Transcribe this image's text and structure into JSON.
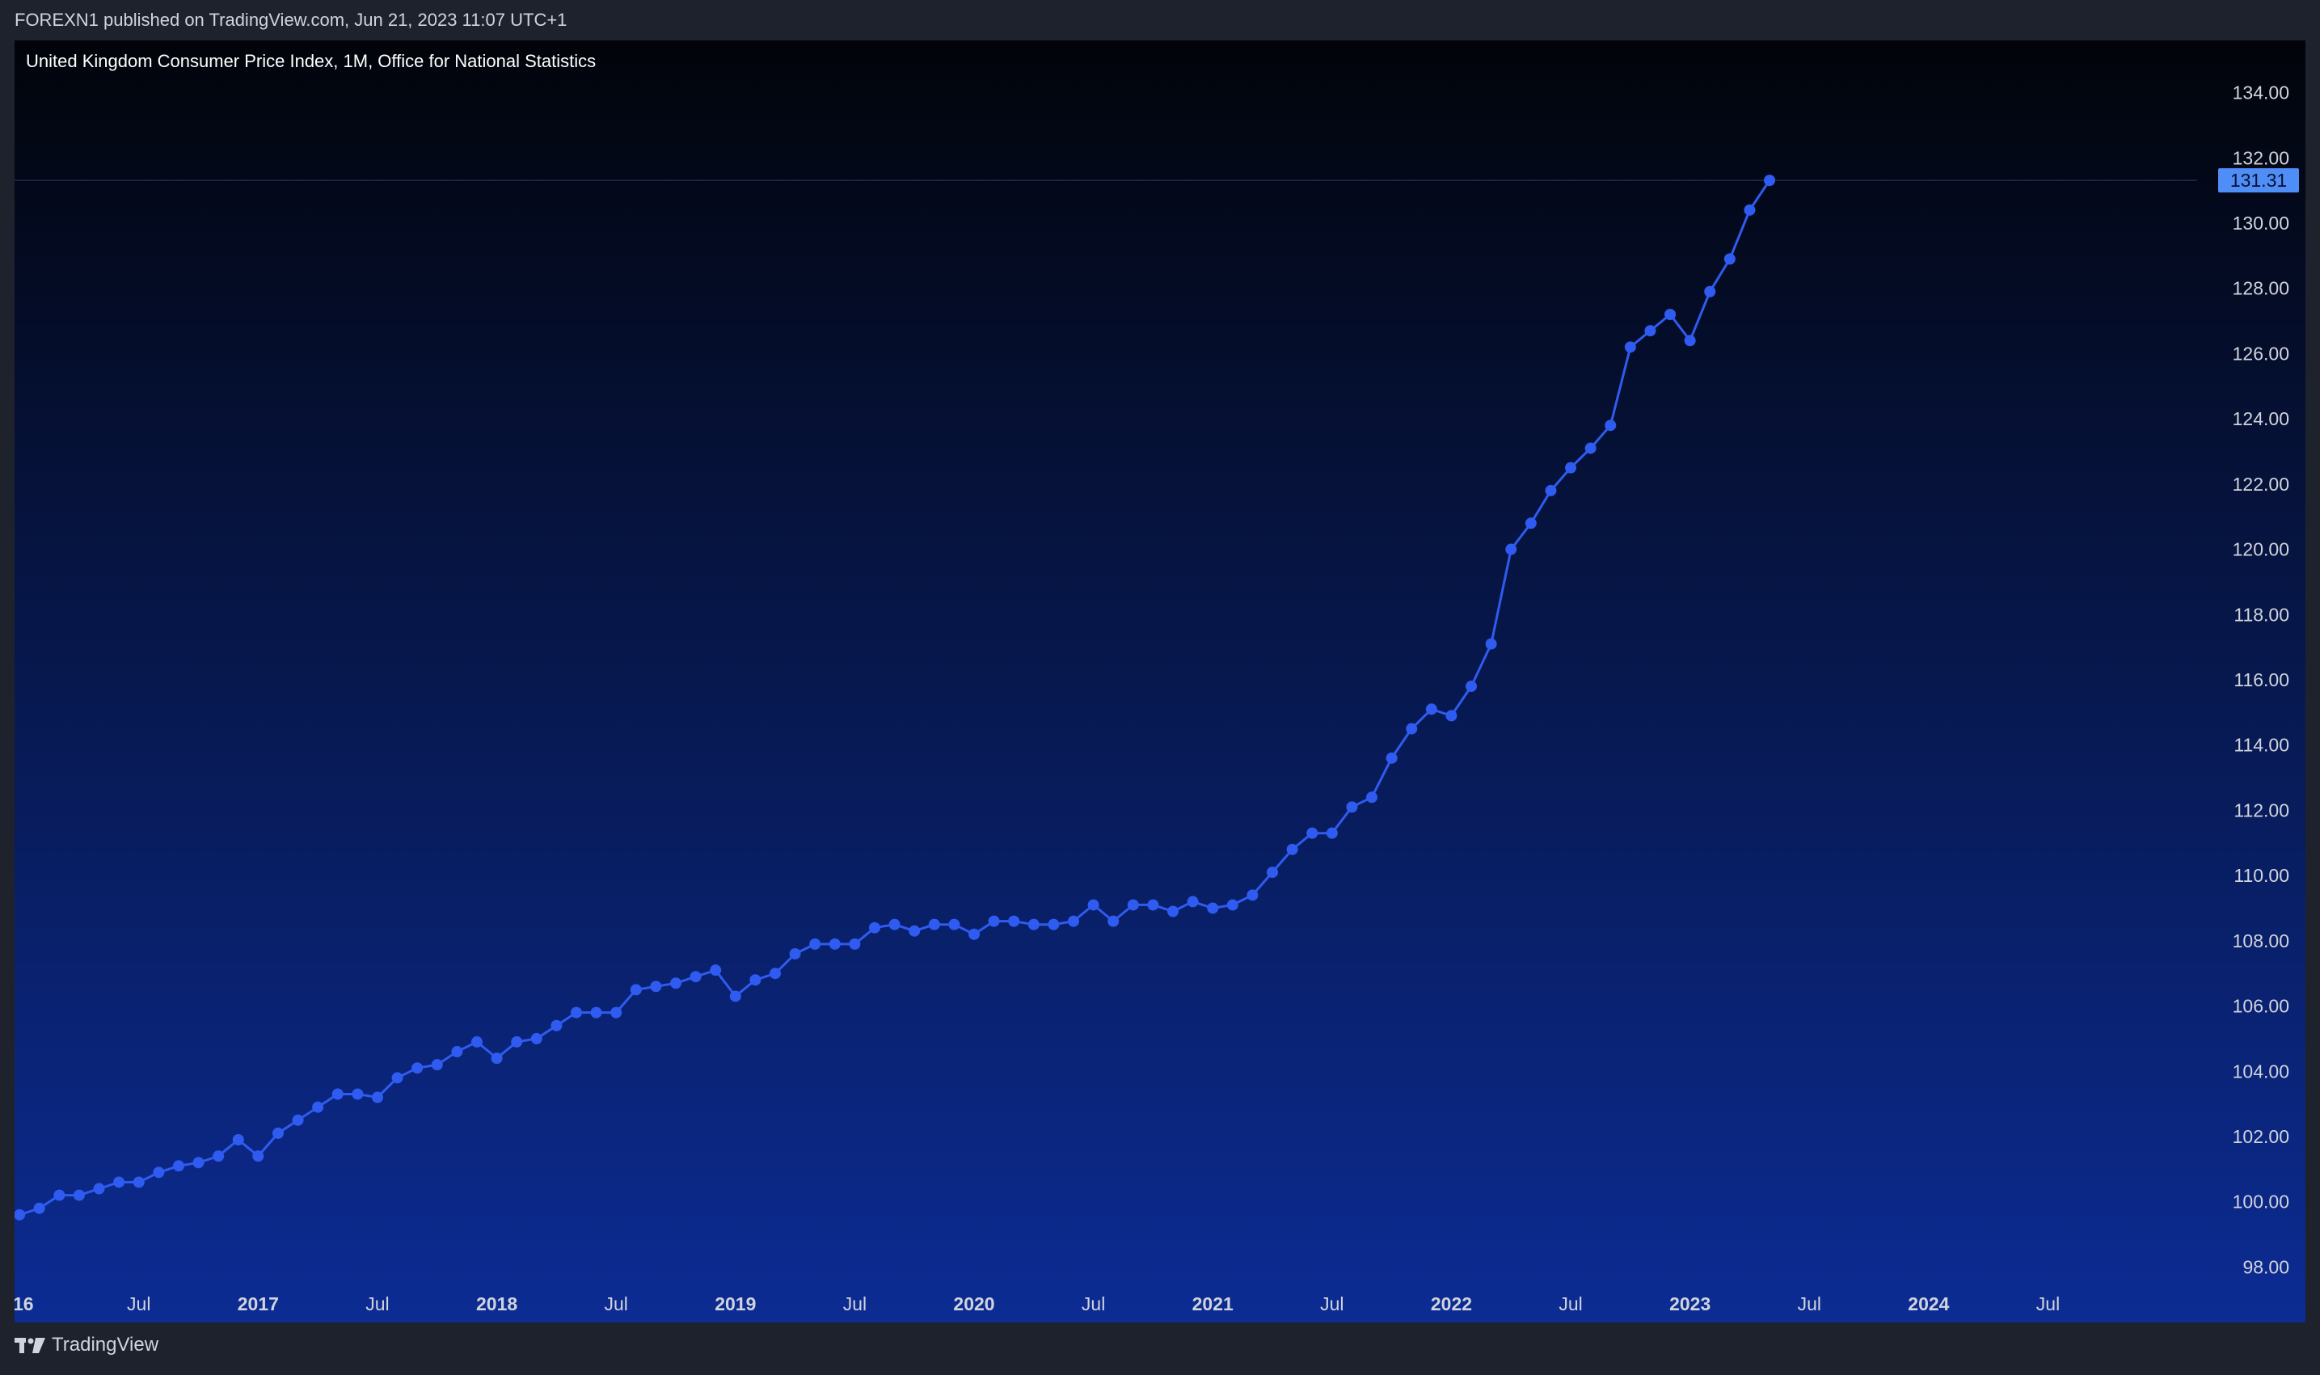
{
  "header": {
    "publisher_text": "FOREXN1 published on TradingView.com, Jun 21, 2023 11:07 UTC+1"
  },
  "footer": {
    "brand": "TradingView"
  },
  "colors": {
    "line": "#2f5bf0",
    "price_label_bg": "#4f8ef7",
    "axis_text": "#d1d4dc"
  },
  "chart_data": {
    "type": "line",
    "title": "United Kingdom Consumer Price Index, 1M, Office for National Statistics",
    "current_value_label": "131.31",
    "y_ticks": [
      "134.00",
      "132.00",
      "130.00",
      "128.00",
      "126.00",
      "124.00",
      "122.00",
      "120.00",
      "118.00",
      "116.00",
      "114.00",
      "112.00",
      "110.00",
      "108.00",
      "106.00",
      "104.00",
      "102.00",
      "100.00",
      "98.00"
    ],
    "x_ticks": [
      {
        "label": "16",
        "month_index": 0,
        "major": true
      },
      {
        "label": "Jul",
        "month_index": 6,
        "major": false
      },
      {
        "label": "2017",
        "month_index": 12,
        "major": true
      },
      {
        "label": "Jul",
        "month_index": 18,
        "major": false
      },
      {
        "label": "2018",
        "month_index": 24,
        "major": true
      },
      {
        "label": "Jul",
        "month_index": 30,
        "major": false
      },
      {
        "label": "2019",
        "month_index": 36,
        "major": true
      },
      {
        "label": "Jul",
        "month_index": 42,
        "major": false
      },
      {
        "label": "2020",
        "month_index": 48,
        "major": true
      },
      {
        "label": "Jul",
        "month_index": 54,
        "major": false
      },
      {
        "label": "2021",
        "month_index": 60,
        "major": true
      },
      {
        "label": "Jul",
        "month_index": 66,
        "major": false
      },
      {
        "label": "2022",
        "month_index": 72,
        "major": true
      },
      {
        "label": "Jul",
        "month_index": 78,
        "major": false
      },
      {
        "label": "2023",
        "month_index": 84,
        "major": true
      },
      {
        "label": "Jul",
        "month_index": 90,
        "major": false
      },
      {
        "label": "2024",
        "month_index": 96,
        "major": true
      },
      {
        "label": "Jul",
        "month_index": 102,
        "major": false
      }
    ],
    "x_start": "2016-01",
    "ylim": [
      96.3,
      135.6
    ],
    "xlim_months": [
      -0.25,
      109.5
    ],
    "series": [
      {
        "values": [
          99.6,
          99.8,
          100.2,
          100.2,
          100.4,
          100.6,
          100.6,
          100.9,
          101.1,
          101.2,
          101.4,
          101.9,
          101.4,
          102.1,
          102.5,
          102.9,
          103.3,
          103.3,
          103.2,
          103.8,
          104.1,
          104.2,
          104.6,
          104.9,
          104.4,
          104.9,
          105.0,
          105.4,
          105.8,
          105.8,
          105.8,
          106.5,
          106.6,
          106.7,
          106.9,
          107.1,
          106.3,
          106.8,
          107.0,
          107.6,
          107.9,
          107.9,
          107.9,
          108.4,
          108.5,
          108.3,
          108.5,
          108.5,
          108.2,
          108.6,
          108.6,
          108.5,
          108.5,
          108.6,
          109.1,
          108.6,
          109.1,
          109.1,
          108.9,
          109.2,
          109.0,
          109.1,
          109.4,
          110.1,
          110.8,
          111.3,
          111.3,
          112.1,
          112.4,
          113.6,
          114.5,
          115.1,
          114.9,
          115.8,
          117.1,
          120.0,
          120.8,
          121.8,
          122.5,
          123.1,
          123.8,
          126.2,
          126.7,
          127.2,
          126.4,
          127.9,
          128.9,
          130.4,
          131.31
        ]
      }
    ]
  }
}
